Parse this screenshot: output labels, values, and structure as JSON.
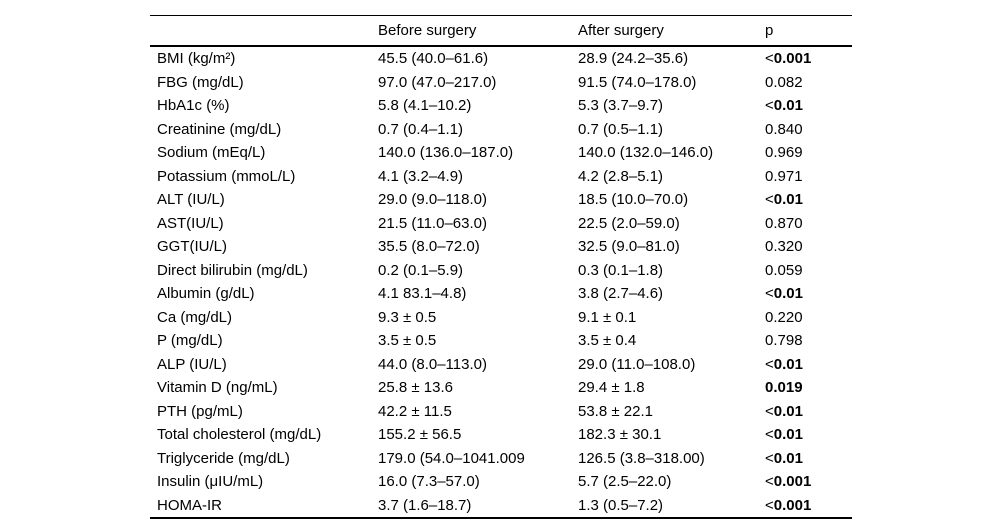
{
  "table": {
    "columns": [
      "",
      "Before surgery",
      "After surgery",
      "p"
    ],
    "rows": [
      {
        "label": "BMI (kg/m²)",
        "before": "45.5 (40.0–61.6)",
        "after": "28.9 (24.2–35.6)",
        "p": "<0.001",
        "p_bold": true
      },
      {
        "label": "FBG (mg/dL)",
        "before": "97.0 (47.0–217.0)",
        "after": "91.5 (74.0–178.0)",
        "p": "0.082",
        "p_bold": false
      },
      {
        "label": "HbA1c (%)",
        "before": "5.8 (4.1–10.2)",
        "after": "5.3 (3.7–9.7)",
        "p": "<0.01",
        "p_bold": true
      },
      {
        "label": "Creatinine (mg/dL)",
        "before": "0.7 (0.4–1.1)",
        "after": "0.7 (0.5–1.1)",
        "p": "0.840",
        "p_bold": false
      },
      {
        "label": "Sodium (mEq/L)",
        "before": "140.0 (136.0–187.0)",
        "after": "140.0 (132.0–146.0)",
        "p": "0.969",
        "p_bold": false
      },
      {
        "label": "Potassium (mmoL/L)",
        "before": "4.1 (3.2–4.9)",
        "after": "4.2 (2.8–5.1)",
        "p": "0.971",
        "p_bold": false
      },
      {
        "label": "ALT (IU/L)",
        "before": "29.0 (9.0–118.0)",
        "after": "18.5 (10.0–70.0)",
        "p": "<0.01",
        "p_bold": true
      },
      {
        "label": "AST(IU/L)",
        "before": "21.5 (11.0–63.0)",
        "after": "22.5 (2.0–59.0)",
        "p": "0.870",
        "p_bold": false
      },
      {
        "label": "GGT(IU/L)",
        "before": "35.5 (8.0–72.0)",
        "after": "32.5 (9.0–81.0)",
        "p": "0.320",
        "p_bold": false
      },
      {
        "label": "Direct bilirubin (mg/dL)",
        "before": "0.2 (0.1–5.9)",
        "after": "0.3 (0.1–1.8)",
        "p": "0.059",
        "p_bold": false
      },
      {
        "label": "Albumin (g/dL)",
        "before": "4.1 83.1–4.8)",
        "after": "3.8 (2.7–4.6)",
        "p": "<0.01",
        "p_bold": true
      },
      {
        "label": "Ca (mg/dL)",
        "before": "9.3 ± 0.5",
        "after": "9.1 ± 0.1",
        "p": "0.220",
        "p_bold": false
      },
      {
        "label": "P (mg/dL)",
        "before": "3.5 ± 0.5",
        "after": "3.5 ± 0.4",
        "p": "0.798",
        "p_bold": false
      },
      {
        "label": "ALP (IU/L)",
        "before": "44.0 (8.0–113.0)",
        "after": "29.0 (11.0–108.0)",
        "p": "<0.01",
        "p_bold": true
      },
      {
        "label": "Vitamin D (ng/mL)",
        "before": "25.8 ± 13.6",
        "after": "29.4 ± 1.8",
        "p": "0.019",
        "p_bold": true
      },
      {
        "label": "PTH (pg/mL)",
        "before": "42.2 ± 11.5",
        "after": "53.8 ± 22.1",
        "p": "<0.01",
        "p_bold": true
      },
      {
        "label": "Total cholesterol (mg/dL)",
        "before": "155.2 ± 56.5",
        "after": "182.3 ± 30.1",
        "p": "<0.01",
        "p_bold": true
      },
      {
        "label": "Triglyceride (mg/dL)",
        "before": "179.0 (54.0–1041.009",
        "after": "126.5 (3.8–318.00)",
        "p": "<0.01",
        "p_bold": true
      },
      {
        "label": "Insulin (μIU/mL)",
        "before": "16.0 (7.3–57.0)",
        "after": "5.7 (2.5–22.0)",
        "p": "<0.001",
        "p_bold": true
      },
      {
        "label": "HOMA-IR",
        "before": "3.7 (1.6–18.7)",
        "after": "1.3 (0.5–7.2)",
        "p": "<0.001",
        "p_bold": true
      }
    ]
  }
}
